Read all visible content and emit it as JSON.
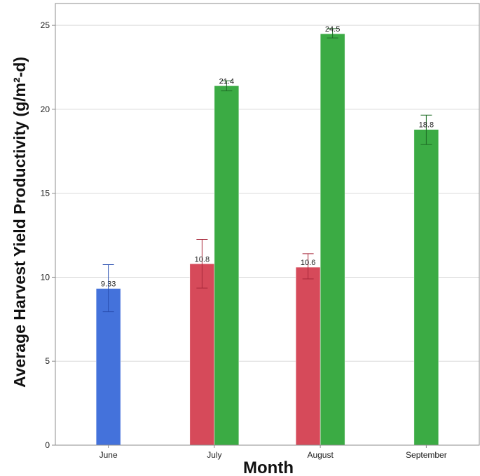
{
  "chart_data": {
    "type": "bar",
    "xlabel": "Month",
    "ylabel": "Average Harvest Yield Productivity (g/m²-d)",
    "ylim": [
      0,
      26.3
    ],
    "yticks": [
      0,
      5,
      10,
      15,
      20,
      25
    ],
    "grid": true,
    "categories": [
      "June",
      "July",
      "August",
      "September"
    ],
    "series": [
      {
        "color": "#4472db",
        "values": [
          9.33,
          null,
          null,
          null
        ],
        "labels": [
          "9.33",
          "",
          "",
          ""
        ],
        "error_low": [
          7.95,
          null,
          null,
          null
        ],
        "error_high": [
          10.75,
          null,
          null,
          null
        ]
      },
      {
        "color": "#d64a5a",
        "values": [
          null,
          10.8,
          10.6,
          null
        ],
        "labels": [
          "",
          "10.8",
          "10.6",
          ""
        ],
        "error_low": [
          null,
          9.35,
          9.9,
          null
        ],
        "error_high": [
          null,
          12.25,
          11.4,
          null
        ]
      },
      {
        "color": "#3bab44",
        "values": [
          null,
          21.4,
          24.5,
          18.8
        ],
        "labels": [
          "",
          "21.4",
          "24.5",
          "18.8"
        ],
        "error_low": [
          null,
          21.1,
          24.25,
          17.9
        ],
        "error_high": [
          null,
          21.7,
          24.8,
          19.65
        ]
      }
    ]
  }
}
